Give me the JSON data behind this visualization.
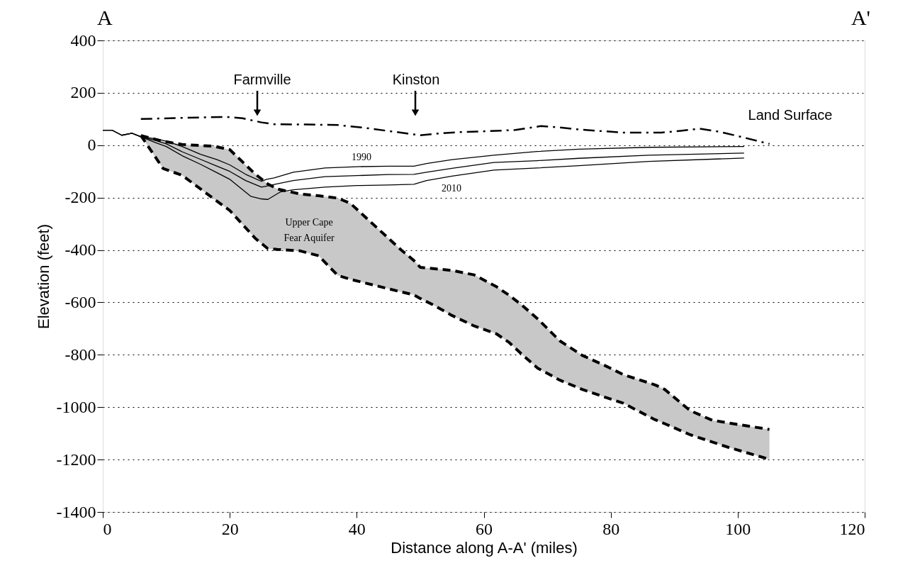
{
  "chart_data": {
    "type": "line",
    "xlabel": "Distance along A-A' (miles)",
    "ylabel": "Elevation (feet)",
    "xlim": [
      0,
      120
    ],
    "xticks": [
      0,
      20,
      40,
      60,
      80,
      100,
      120
    ],
    "ylim": [
      -1400,
      400
    ],
    "yticks": [
      -1400,
      -1200,
      -1000,
      -800,
      -600,
      -400,
      -200,
      0,
      200,
      400
    ],
    "grid": "y",
    "series": [
      {
        "color": "#000000",
        "line_style": "dashed",
        "upper": [
          37,
          15,
          3,
          -4,
          -17,
          -110,
          -148,
          -167,
          -186,
          -193,
          -202,
          -222,
          -400,
          -440,
          -466,
          -471,
          -478,
          -495,
          -540,
          -573,
          -610,
          -663,
          -747,
          -802,
          -840,
          -876,
          -915,
          -932,
          -1013,
          -1050,
          -1060,
          -1085
        ],
        "x": [
          6,
          9.5,
          12.5,
          17.5,
          20,
          24,
          26,
          27.5,
          31,
          34,
          37,
          39,
          47,
          49,
          50,
          52,
          55,
          58.5,
          62,
          64,
          66,
          68.5,
          72,
          75.5,
          79,
          82,
          87,
          88.5,
          92.5,
          96,
          98.5,
          105
        ],
        "values": [
          37,
          15,
          3,
          -4,
          -17,
          -110,
          -148,
          -167,
          -186,
          -193,
          -202,
          -222,
          -400,
          -440,
          -466,
          -471,
          -478,
          -495,
          -540,
          -573,
          -610,
          -663,
          -747,
          -802,
          -840,
          -876,
          -915,
          -932,
          -1013,
          -1050,
          -1060,
          -1085
        ],
        "lower": [
          37,
          -89,
          -115,
          -205,
          -249,
          -355,
          -395,
          -398,
          -403,
          -422,
          -497,
          -512,
          -560,
          -571,
          -585,
          -609,
          -650,
          -690,
          -720,
          -753,
          -798,
          -851,
          -897,
          -932,
          -961,
          -985,
          -1048,
          -1063,
          -1105,
          -1133,
          -1153,
          -1199
        ]
      },
      {
        "color": "#000000",
        "line_style": "dashed",
        "x": [
          6,
          9.5,
          12.5,
          17.5,
          20,
          24,
          26,
          27.5,
          31,
          34,
          37,
          39,
          47,
          49,
          50,
          52,
          55,
          58.5,
          62,
          64,
          66,
          68.5,
          72,
          75.5,
          79,
          82,
          87,
          88.5,
          92.5,
          96,
          98.5,
          105
        ],
        "values": [
          37,
          -89,
          -115,
          -205,
          -249,
          -355,
          -395,
          -398,
          -403,
          -422,
          -497,
          -512,
          -560,
          -571,
          -585,
          -609,
          -650,
          -690,
          -720,
          -753,
          -798,
          -851,
          -897,
          -932,
          -961,
          -985,
          -1048,
          -1063,
          -1105,
          -1133,
          -1153,
          -1199
        ]
      },
      {
        "name": "Land Surface",
        "color": "#000000",
        "line_style": "dashdot",
        "x": [
          6,
          12,
          19.5,
          22,
          25,
          27,
          32,
          37,
          41,
          46,
          50,
          53,
          56,
          60,
          65,
          69,
          72,
          75,
          82,
          88,
          91,
          94,
          97,
          100,
          105
        ],
        "values": [
          100,
          104,
          108,
          103,
          87,
          80,
          79,
          77,
          67,
          51,
          38,
          45,
          50,
          53,
          58,
          73,
          68,
          60,
          48,
          48,
          55,
          63,
          52,
          35,
          5
        ]
      },
      {
        "name": "1990",
        "color": "#000000",
        "line_style": "solid",
        "x": [
          0,
          1.5,
          3,
          4.6,
          6,
          8.3,
          10,
          12.5,
          15.4,
          18,
          20,
          22.5,
          25,
          25.8,
          27,
          30,
          35,
          40,
          45,
          49,
          51,
          55,
          61.6,
          68.4,
          75,
          86,
          101
        ],
        "values": [
          57,
          57,
          38,
          46,
          32,
          25,
          15,
          -5,
          -35,
          -55,
          -75,
          -111,
          -138,
          -130,
          -125,
          -103,
          -87,
          -82,
          -80,
          -80,
          -70,
          -55,
          -38,
          -24,
          -15,
          -8,
          -5
        ]
      },
      {
        "color": "#000000",
        "line_style": "solid",
        "x": [
          0,
          1.5,
          3,
          4.6,
          6,
          8.3,
          10,
          12.5,
          15.4,
          18,
          20,
          22.5,
          25,
          26,
          27,
          30,
          35,
          40,
          45,
          49,
          51,
          55,
          61.6,
          68.4,
          75,
          86,
          101
        ],
        "values": [
          57,
          57,
          38,
          46,
          32,
          18,
          5,
          -25,
          -54,
          -80,
          -100,
          -135,
          -160,
          -155,
          -150,
          -135,
          -120,
          -116,
          -112,
          -111,
          -103,
          -88,
          -66,
          -59,
          -50,
          -38,
          -30
        ]
      },
      {
        "name": "2010",
        "color": "#000000",
        "line_style": "solid",
        "x": [
          0,
          1.5,
          3,
          4.6,
          6,
          8.3,
          10,
          12.5,
          15.4,
          18,
          20,
          22.5,
          23.3,
          25,
          26,
          28,
          30,
          35,
          40,
          45,
          49,
          51,
          55,
          61.6,
          68.4,
          75,
          86,
          101
        ],
        "values": [
          57,
          57,
          38,
          46,
          32,
          10,
          -5,
          -40,
          -73,
          -105,
          -130,
          -179,
          -195,
          -205,
          -207,
          -178,
          -170,
          -160,
          -154,
          -152,
          -149,
          -135,
          -118,
          -95,
          -87,
          -78,
          -62,
          -49
        ]
      }
    ],
    "annotations": [
      "A",
      "A'",
      "Farmville",
      "Kinston",
      "Upper Cape\nFear Aquifer"
    ]
  }
}
